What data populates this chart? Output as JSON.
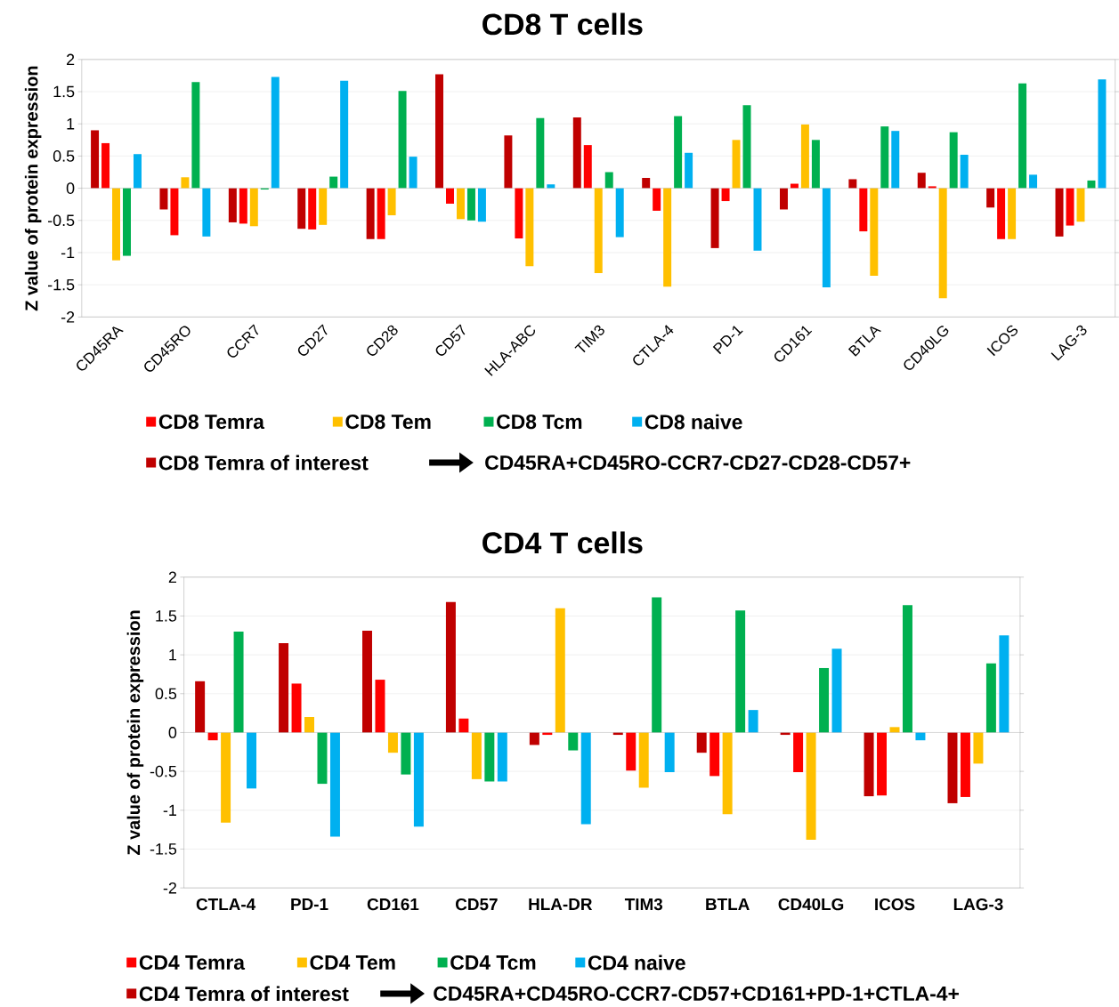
{
  "chart_data": [
    {
      "type": "bar",
      "title": "CD8 T cells",
      "ylabel": "Z value of protein expression",
      "categories": [
        "CD45RA",
        "CD45RO",
        "CCR7",
        "CD27",
        "CD28",
        "CD57",
        "HLA-ABC",
        "TIM3",
        "CTLA-4",
        "PD-1",
        "CD161",
        "BTLA",
        "CD40LG",
        "ICOS",
        "LAG-3"
      ],
      "series": [
        {
          "name": "CD8 Temra of interest",
          "color": "#c00000",
          "values": [
            0.9,
            -0.33,
            -0.53,
            -0.63,
            -0.79,
            1.77,
            0.82,
            1.1,
            0.16,
            -0.93,
            -0.33,
            0.14,
            0.24,
            -0.3,
            -0.75
          ]
        },
        {
          "name": "CD8 Temra",
          "color": "#ff0000",
          "values": [
            0.7,
            -0.73,
            -0.55,
            -0.64,
            -0.79,
            -0.24,
            -0.78,
            0.67,
            -0.35,
            -0.2,
            0.07,
            -0.67,
            0.03,
            -0.79,
            -0.58
          ]
        },
        {
          "name": "CD8 Tem",
          "color": "#ffc000",
          "values": [
            -1.12,
            0.17,
            -0.59,
            -0.57,
            -0.42,
            -0.48,
            -1.21,
            -1.32,
            -1.53,
            0.75,
            0.99,
            -1.36,
            -1.71,
            -0.79,
            -0.52
          ]
        },
        {
          "name": "CD8 Tcm",
          "color": "#00b050",
          "values": [
            -1.05,
            1.65,
            -0.02,
            0.18,
            1.51,
            -0.5,
            1.09,
            0.25,
            1.12,
            1.29,
            0.75,
            0.96,
            0.87,
            1.63,
            0.12
          ]
        },
        {
          "name": "CD8 naive",
          "color": "#00b0f0",
          "values": [
            0.53,
            -0.75,
            1.73,
            1.67,
            0.49,
            -0.52,
            0.06,
            -0.76,
            0.55,
            -0.97,
            -1.54,
            0.89,
            0.52,
            0.21,
            1.69
          ]
        }
      ],
      "ylim": [
        -2,
        2
      ],
      "yticks": [
        -2,
        -1.5,
        -1,
        -0.5,
        0,
        0.5,
        1,
        1.5,
        2
      ],
      "grid": "y",
      "legend": "bottom",
      "annotations": [
        "CD45RA+CD45RO-CCR7-CD27-CD28-CD57+"
      ]
    },
    {
      "type": "bar",
      "title": "CD4 T cells",
      "ylabel": "Z value of protein expression",
      "categories": [
        "CTLA-4",
        "PD-1",
        "CD161",
        "CD57",
        "HLA-DR",
        "TIM3",
        "BTLA",
        "CD40LG",
        "ICOS",
        "LAG-3"
      ],
      "series": [
        {
          "name": "CD4 Temra of interest",
          "color": "#c00000",
          "values": [
            0.66,
            1.15,
            1.31,
            1.68,
            -0.16,
            -0.03,
            -0.26,
            -0.03,
            -0.82,
            -0.91
          ]
        },
        {
          "name": "CD4 Temra",
          "color": "#ff0000",
          "values": [
            -0.1,
            0.63,
            0.68,
            0.18,
            -0.03,
            -0.49,
            -0.56,
            -0.51,
            -0.81,
            -0.83
          ]
        },
        {
          "name": "CD4 Tem",
          "color": "#ffc000",
          "values": [
            -1.16,
            0.2,
            -0.26,
            -0.6,
            1.6,
            -0.71,
            -1.05,
            -1.38,
            0.07,
            -0.4
          ]
        },
        {
          "name": "CD4 Tcm",
          "color": "#00b050",
          "values": [
            1.3,
            -0.66,
            -0.54,
            -0.63,
            -0.23,
            1.74,
            1.57,
            0.83,
            1.64,
            0.89
          ]
        },
        {
          "name": "CD4 naive",
          "color": "#00b0f0",
          "values": [
            -0.72,
            -1.34,
            -1.21,
            -0.63,
            -1.18,
            -0.51,
            0.29,
            1.08,
            -0.1,
            1.25
          ]
        }
      ],
      "ylim": [
        -2,
        2
      ],
      "yticks": [
        -2,
        -1.5,
        -1,
        -0.5,
        0,
        0.5,
        1,
        1.5,
        2
      ],
      "grid": "y",
      "legend": "bottom",
      "annotations": [
        "CD45RA+CD45RO-CCR7-CD57+CD161+PD-1+CTLA-4+"
      ]
    }
  ]
}
